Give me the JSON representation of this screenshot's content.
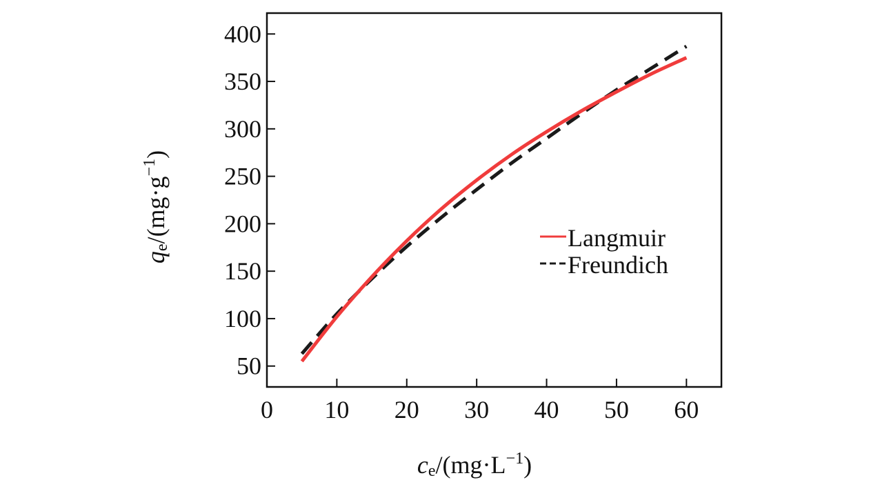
{
  "chart_data": {
    "type": "line",
    "x_axis": {
      "label_var": "c",
      "label_sub": "e",
      "label_unit_pre": "/(mg·L",
      "label_sup": "−1",
      "label_unit_post": ")",
      "range": [
        0,
        65
      ],
      "ticks": [
        0,
        10,
        20,
        30,
        40,
        50,
        60
      ],
      "tick_labels": [
        "0",
        "10",
        "20",
        "30",
        "40",
        "50",
        "60"
      ]
    },
    "y_axis": {
      "label_var": "q",
      "label_sub": "e",
      "label_unit_pre": "/(mg·g",
      "label_sup": "−1",
      "label_unit_post": ")",
      "range": [
        28,
        422
      ],
      "ticks": [
        50,
        100,
        150,
        200,
        250,
        300,
        350,
        400
      ],
      "tick_labels": [
        "50",
        "100",
        "150",
        "200",
        "250",
        "300",
        "350",
        "400"
      ]
    },
    "grid": false,
    "legend_position": "center-right",
    "series": [
      {
        "name": "Langmuir",
        "color": "#f03c3c",
        "style": "solid",
        "x": [
          5,
          10,
          15,
          20,
          25,
          30,
          35,
          40,
          45,
          50,
          55,
          60
        ],
        "y": [
          55,
          102,
          144,
          182,
          216,
          246,
          273,
          297,
          319,
          339,
          358,
          375
        ]
      },
      {
        "name": "Freundich",
        "color": "#1a1a1a",
        "style": "dashed",
        "x": [
          5,
          10,
          15,
          20,
          25,
          30,
          35,
          40,
          45,
          50,
          55,
          60
        ],
        "y": [
          63,
          105,
          142,
          176,
          207,
          236,
          264,
          290,
          316,
          341,
          364,
          387
        ]
      }
    ]
  }
}
